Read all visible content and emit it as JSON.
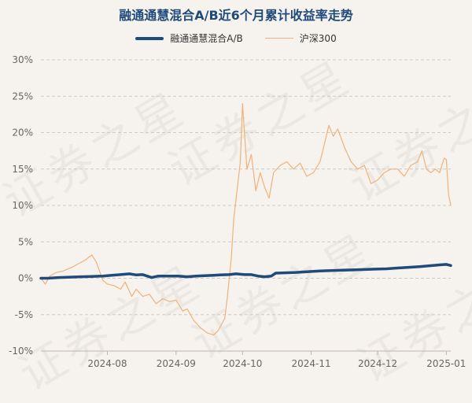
{
  "chart_data": {
    "type": "line",
    "title": "融通通慧混合A/B近6个月累计收益率走势",
    "xlabel": "",
    "ylabel": "",
    "x_tick_labels": [
      "2024-08",
      "2024-09",
      "2024-10",
      "2024-11",
      "2024-12",
      "2025-01"
    ],
    "x_range": [
      "2024-07-02",
      "2025-01-03"
    ],
    "y_tick_labels": [
      "30%",
      "25%",
      "20%",
      "15%",
      "10%",
      "5%",
      "0%",
      "-5%",
      "-10%"
    ],
    "ylim": [
      -10,
      30
    ],
    "y_unit": "%",
    "grid": "horizontal dashed",
    "legend_position": "top-center",
    "watermark": "证券之星",
    "series": [
      {
        "name": "融通通慧混合A/B",
        "color": "#1f4a7a",
        "points": [
          [
            "2024-07-02",
            0.0
          ],
          [
            "2024-07-05",
            0.0
          ],
          [
            "2024-07-10",
            0.1
          ],
          [
            "2024-07-15",
            0.15
          ],
          [
            "2024-07-20",
            0.2
          ],
          [
            "2024-07-25",
            0.25
          ],
          [
            "2024-07-30",
            0.3
          ],
          [
            "2024-08-03",
            0.4
          ],
          [
            "2024-08-07",
            0.5
          ],
          [
            "2024-08-11",
            0.6
          ],
          [
            "2024-08-14",
            0.45
          ],
          [
            "2024-08-17",
            0.5
          ],
          [
            "2024-08-21",
            0.1
          ],
          [
            "2024-08-24",
            0.3
          ],
          [
            "2024-08-28",
            0.3
          ],
          [
            "2024-09-02",
            0.3
          ],
          [
            "2024-09-06",
            0.2
          ],
          [
            "2024-09-10",
            0.3
          ],
          [
            "2024-09-14",
            0.35
          ],
          [
            "2024-09-18",
            0.4
          ],
          [
            "2024-09-21",
            0.45
          ],
          [
            "2024-09-25",
            0.5
          ],
          [
            "2024-09-28",
            0.6
          ],
          [
            "2024-10-02",
            0.5
          ],
          [
            "2024-10-05",
            0.5
          ],
          [
            "2024-10-08",
            0.3
          ],
          [
            "2024-10-11",
            0.2
          ],
          [
            "2024-10-14",
            0.3
          ],
          [
            "2024-10-16",
            0.7
          ],
          [
            "2024-10-20",
            0.75
          ],
          [
            "2024-10-25",
            0.8
          ],
          [
            "2024-10-30",
            0.9
          ],
          [
            "2024-11-05",
            1.0
          ],
          [
            "2024-11-10",
            1.05
          ],
          [
            "2024-11-15",
            1.1
          ],
          [
            "2024-11-20",
            1.15
          ],
          [
            "2024-11-25",
            1.2
          ],
          [
            "2024-11-30",
            1.25
          ],
          [
            "2024-12-05",
            1.3
          ],
          [
            "2024-12-10",
            1.4
          ],
          [
            "2024-12-15",
            1.5
          ],
          [
            "2024-12-20",
            1.6
          ],
          [
            "2024-12-24",
            1.7
          ],
          [
            "2024-12-28",
            1.8
          ],
          [
            "2025-01-01",
            1.9
          ],
          [
            "2025-01-03",
            1.75
          ]
        ]
      },
      {
        "name": "沪深300",
        "color": "#f0b27a",
        "points": [
          [
            "2024-07-02",
            0.0
          ],
          [
            "2024-07-04",
            -0.8
          ],
          [
            "2024-07-06",
            0.3
          ],
          [
            "2024-07-09",
            0.8
          ],
          [
            "2024-07-12",
            1.0
          ],
          [
            "2024-07-16",
            1.5
          ],
          [
            "2024-07-19",
            2.0
          ],
          [
            "2024-07-22",
            2.5
          ],
          [
            "2024-07-25",
            3.2
          ],
          [
            "2024-07-27",
            2.2
          ],
          [
            "2024-07-30",
            -0.3
          ],
          [
            "2024-08-01",
            -0.8
          ],
          [
            "2024-08-04",
            -1.0
          ],
          [
            "2024-08-07",
            -1.5
          ],
          [
            "2024-08-09",
            -0.5
          ],
          [
            "2024-08-12",
            -2.5
          ],
          [
            "2024-08-14",
            -1.5
          ],
          [
            "2024-08-17",
            -2.5
          ],
          [
            "2024-08-20",
            -2.2
          ],
          [
            "2024-08-23",
            -3.5
          ],
          [
            "2024-08-26",
            -2.8
          ],
          [
            "2024-08-29",
            -3.2
          ],
          [
            "2024-09-01",
            -3.0
          ],
          [
            "2024-09-04",
            -4.5
          ],
          [
            "2024-09-06",
            -4.2
          ],
          [
            "2024-09-09",
            -5.8
          ],
          [
            "2024-09-12",
            -6.8
          ],
          [
            "2024-09-15",
            -7.5
          ],
          [
            "2024-09-18",
            -7.8
          ],
          [
            "2024-09-20",
            -7.2
          ],
          [
            "2024-09-23",
            -5.5
          ],
          [
            "2024-09-24",
            -3.0
          ],
          [
            "2024-09-26",
            3.0
          ],
          [
            "2024-09-27",
            8.0
          ],
          [
            "2024-09-30",
            16.0
          ],
          [
            "2024-10-01",
            24.0
          ],
          [
            "2024-10-03",
            15.0
          ],
          [
            "2024-10-05",
            17.0
          ],
          [
            "2024-10-07",
            12.0
          ],
          [
            "2024-10-09",
            14.5
          ],
          [
            "2024-10-11",
            12.5
          ],
          [
            "2024-10-13",
            11.0
          ],
          [
            "2024-10-15",
            14.5
          ],
          [
            "2024-10-18",
            15.5
          ],
          [
            "2024-10-21",
            16.0
          ],
          [
            "2024-10-24",
            15.0
          ],
          [
            "2024-10-27",
            15.8
          ],
          [
            "2024-10-30",
            14.0
          ],
          [
            "2024-11-02",
            14.5
          ],
          [
            "2024-11-05",
            16.0
          ],
          [
            "2024-11-07",
            18.5
          ],
          [
            "2024-11-09",
            21.0
          ],
          [
            "2024-11-11",
            19.5
          ],
          [
            "2024-11-13",
            20.5
          ],
          [
            "2024-11-16",
            18.0
          ],
          [
            "2024-11-19",
            16.0
          ],
          [
            "2024-11-22",
            15.0
          ],
          [
            "2024-11-25",
            15.5
          ],
          [
            "2024-11-28",
            13.0
          ],
          [
            "2024-12-01",
            13.5
          ],
          [
            "2024-12-04",
            14.5
          ],
          [
            "2024-12-07",
            15.0
          ],
          [
            "2024-12-10",
            15.0
          ],
          [
            "2024-12-13",
            14.0
          ],
          [
            "2024-12-16",
            15.5
          ],
          [
            "2024-12-19",
            16.0
          ],
          [
            "2024-12-21",
            17.5
          ],
          [
            "2024-12-23",
            15.0
          ],
          [
            "2024-12-25",
            14.5
          ],
          [
            "2024-12-27",
            15.0
          ],
          [
            "2024-12-29",
            14.5
          ],
          [
            "2024-12-31",
            16.5
          ],
          [
            "2025-01-01",
            16.3
          ],
          [
            "2025-01-02",
            11.5
          ],
          [
            "2025-01-03",
            10.0
          ]
        ]
      }
    ]
  }
}
